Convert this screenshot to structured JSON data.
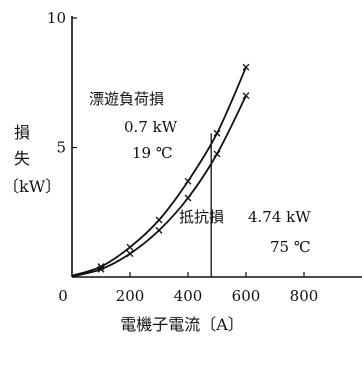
{
  "chart_data": {
    "type": "line",
    "title": "",
    "xlabel": "電機子電流〔A〕",
    "ylabel": [
      "損",
      "失",
      "〔kW〕"
    ],
    "xlim": [
      0,
      1000
    ],
    "ylim": [
      0,
      10
    ],
    "x_ticks": [
      "0",
      "200",
      "400",
      "600",
      "800"
    ],
    "y_ticks": [
      "5",
      "10"
    ],
    "grid": false,
    "series": [
      {
        "marker": "×",
        "x": [
          0,
          100,
          200,
          300,
          400,
          500,
          600
        ],
        "y": [
          0.05,
          0.4,
          1.15,
          2.2,
          3.7,
          5.55,
          8.1
        ]
      },
      {
        "marker": "×",
        "x": [
          0,
          100,
          200,
          300,
          400,
          500,
          600
        ],
        "y": [
          0.02,
          0.3,
          0.9,
          1.8,
          3.05,
          4.75,
          7.0
        ]
      }
    ],
    "reference_line": {
      "x": 480,
      "y": [
        0,
        5.55
      ]
    },
    "annotations": {
      "stray_label": "漂遊負荷損",
      "stray_value": "0.7 kW",
      "stray_temp": "19 ℃",
      "res_label": "抵抗損",
      "res_value": "4.74 kW",
      "res_temp": "75 ℃"
    }
  }
}
